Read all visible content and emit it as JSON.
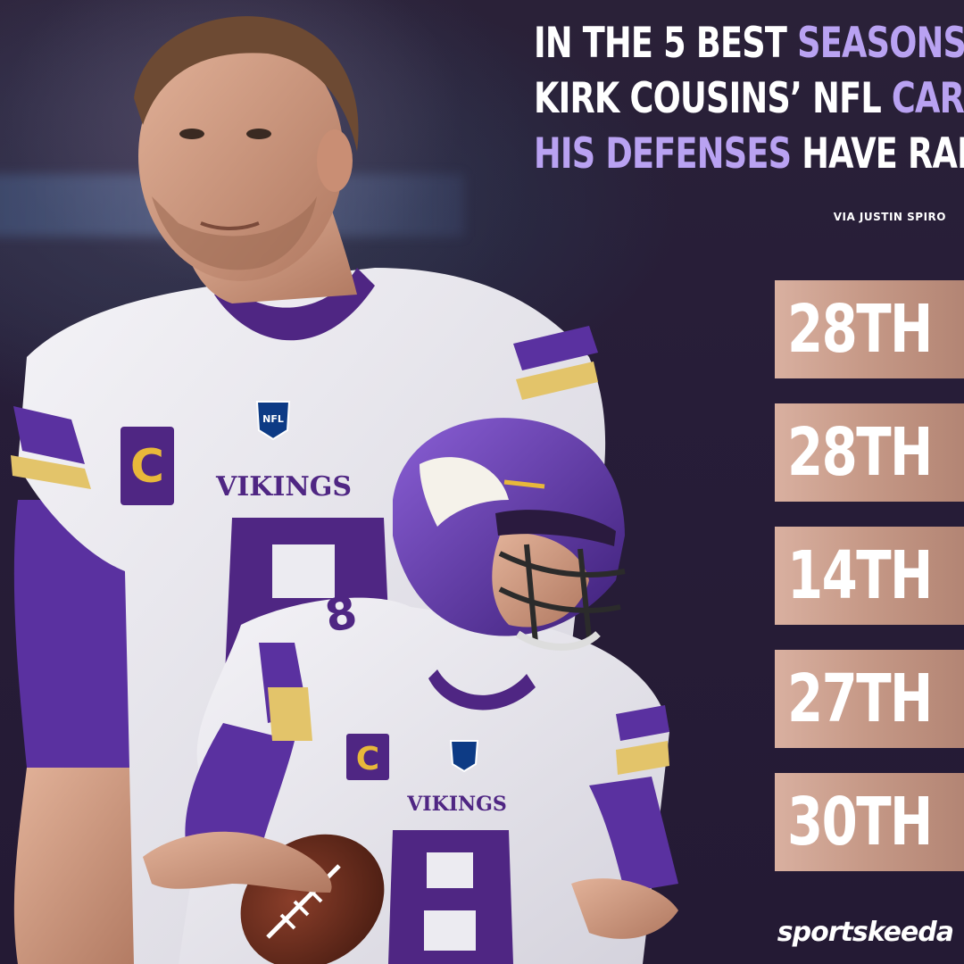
{
  "headline": {
    "line1_white": "IN THE 5 BEST ",
    "line1_purple": "SEASONS OF",
    "line2_white": "KIRK COUSINS’ NFL ",
    "line2_purple": "CAREER,",
    "line3_purple": "HIS DEFENSES ",
    "line3_white": "HAVE RANKED"
  },
  "source": "VIA JUSTIN SPIRO",
  "ranks": [
    "28TH",
    "28TH",
    "14TH",
    "27TH",
    "30TH"
  ],
  "brand": "sportskeeda",
  "jersey": {
    "team_text": "VIKINGS",
    "number": "8",
    "captain_patch": "C",
    "league_logo": "NFL"
  },
  "colors": {
    "background": "#231a35",
    "accent_purple": "#b9a2f2",
    "rank_box": "#c79a88",
    "vikings_purple": "#4f2683",
    "vikings_gold": "#ffc62f"
  }
}
